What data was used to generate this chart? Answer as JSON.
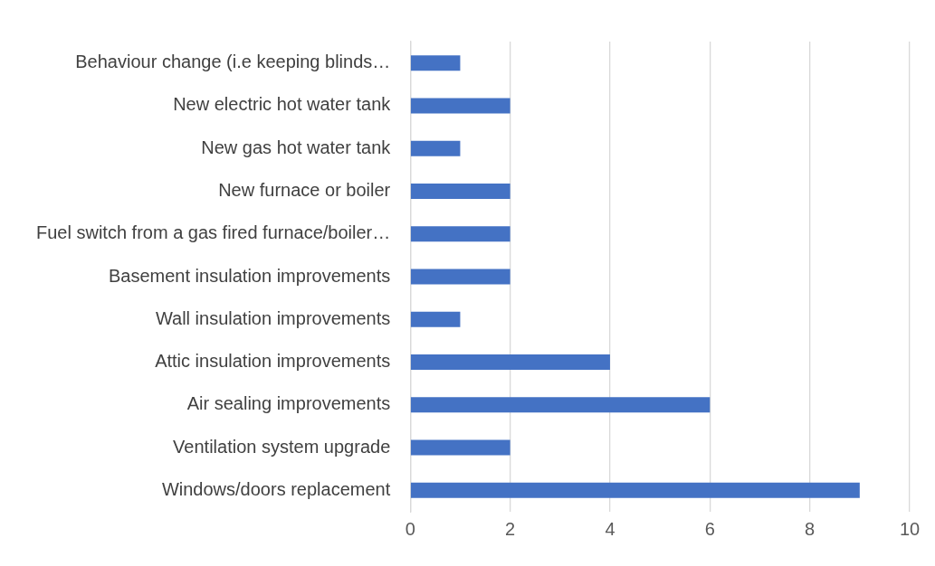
{
  "chart_data": {
    "type": "bar",
    "orientation": "horizontal",
    "categories": [
      "Behaviour change (i.e keeping blinds…",
      "New electric hot water tank",
      "New gas hot water tank",
      "New furnace or boiler",
      "Fuel switch from a gas fired furnace/boiler…",
      "Basement insulation improvements",
      "Wall insulation improvements",
      "Attic insulation improvements",
      "Air sealing improvements",
      "Ventilation system upgrade",
      "Windows/doors replacement"
    ],
    "values": [
      1,
      2,
      1,
      2,
      2,
      2,
      1,
      4,
      6,
      2,
      9
    ],
    "color": "#4472c4",
    "xlim": [
      0,
      10
    ],
    "xticks": [
      0,
      2,
      4,
      6,
      8,
      10
    ],
    "grid": "x"
  }
}
